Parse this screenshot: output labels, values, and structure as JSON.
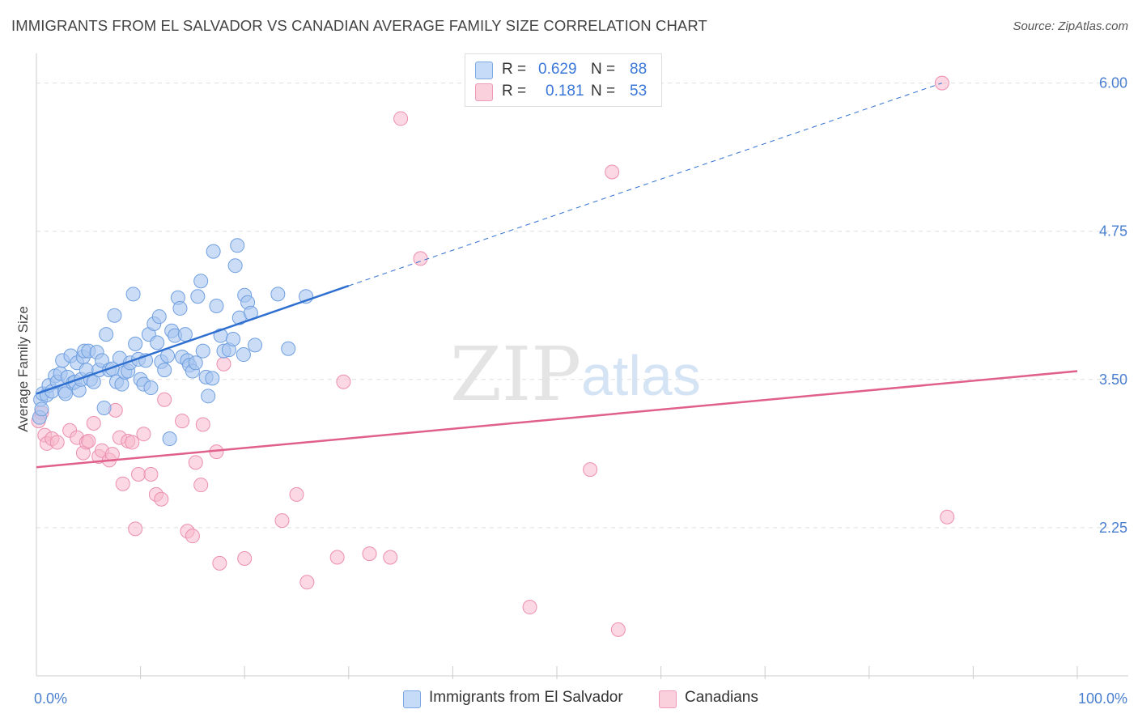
{
  "title": "IMMIGRANTS FROM EL SALVADOR VS CANADIAN AVERAGE FAMILY SIZE CORRELATION CHART",
  "source": "Source: ZipAtlas.com",
  "watermark": {
    "zip": "ZIP",
    "atlas": "atlas"
  },
  "legend": {
    "rows": [
      {
        "r_label": "R =",
        "r_value": "0.629",
        "n_label": "N =",
        "n_value": "88",
        "color": "#a8c6f0"
      },
      {
        "r_label": "R =",
        "r_value": "0.181",
        "n_label": "N =",
        "n_value": "53",
        "color": "#f7b8cc"
      }
    ]
  },
  "bottom_legend": [
    {
      "label": "Immigrants from El Salvador",
      "color": "#a8c6f0"
    },
    {
      "label": "Canadians",
      "color": "#f7b8cc"
    }
  ],
  "colors": {
    "blue_fill": "#a8c6f0",
    "blue_stroke": "#6f9fe0",
    "blue_line": "#2f6fd0",
    "pink_fill": "#f7b8cc",
    "pink_stroke": "#ec8fb0",
    "pink_line": "#e0608a",
    "tick_text": "#4a7fd0",
    "grid": "#dddddd"
  },
  "chart_data": {
    "type": "scatter",
    "title": "IMMIGRANTS FROM EL SALVADOR VS CANADIAN AVERAGE FAMILY SIZE CORRELATION CHART",
    "xlabel": "",
    "ylabel": "Average Family Size",
    "xlim": [
      0,
      100
    ],
    "ylim": [
      1.0,
      6.25
    ],
    "y_ticks": [
      2.25,
      3.5,
      4.75,
      6.0
    ],
    "y_tick_labels": [
      "2.25",
      "3.50",
      "4.75",
      "6.00"
    ],
    "x_tick_labels": [
      "0.0%",
      "100.0%"
    ],
    "grid": "horizontal dashed",
    "series": [
      {
        "name": "Immigrants from El Salvador",
        "trend": {
          "x": [
            0,
            30
          ],
          "y": [
            3.38,
            4.29
          ],
          "extended_to": [
            87,
            6.0
          ]
        },
        "points": [
          [
            0.3,
            3.18
          ],
          [
            0.4,
            3.33
          ],
          [
            0.5,
            3.25
          ],
          [
            0.6,
            3.38
          ],
          [
            1.0,
            3.37
          ],
          [
            1.2,
            3.45
          ],
          [
            1.5,
            3.4
          ],
          [
            1.8,
            3.53
          ],
          [
            2.0,
            3.48
          ],
          [
            2.3,
            3.55
          ],
          [
            2.5,
            3.66
          ],
          [
            2.7,
            3.4
          ],
          [
            2.8,
            3.38
          ],
          [
            3.0,
            3.52
          ],
          [
            3.3,
            3.7
          ],
          [
            3.5,
            3.47
          ],
          [
            3.7,
            3.48
          ],
          [
            3.9,
            3.64
          ],
          [
            4.1,
            3.41
          ],
          [
            4.3,
            3.5
          ],
          [
            4.5,
            3.69
          ],
          [
            4.6,
            3.74
          ],
          [
            4.8,
            3.58
          ],
          [
            5.0,
            3.74
          ],
          [
            5.2,
            3.5
          ],
          [
            5.5,
            3.48
          ],
          [
            5.8,
            3.73
          ],
          [
            6.0,
            3.58
          ],
          [
            6.3,
            3.66
          ],
          [
            6.5,
            3.26
          ],
          [
            6.7,
            3.88
          ],
          [
            7.0,
            3.58
          ],
          [
            7.3,
            3.59
          ],
          [
            7.5,
            4.04
          ],
          [
            7.7,
            3.48
          ],
          [
            8.0,
            3.68
          ],
          [
            8.2,
            3.46
          ],
          [
            8.5,
            3.56
          ],
          [
            8.8,
            3.57
          ],
          [
            9.0,
            3.64
          ],
          [
            9.3,
            4.22
          ],
          [
            9.5,
            3.8
          ],
          [
            9.8,
            3.67
          ],
          [
            10.0,
            3.5
          ],
          [
            10.3,
            3.46
          ],
          [
            10.5,
            3.66
          ],
          [
            10.8,
            3.88
          ],
          [
            11.0,
            3.43
          ],
          [
            11.3,
            3.97
          ],
          [
            11.6,
            3.81
          ],
          [
            11.8,
            4.03
          ],
          [
            12.0,
            3.65
          ],
          [
            12.3,
            3.58
          ],
          [
            12.6,
            3.7
          ],
          [
            12.8,
            3.0
          ],
          [
            13.0,
            3.91
          ],
          [
            13.3,
            3.87
          ],
          [
            13.6,
            4.19
          ],
          [
            13.8,
            4.1
          ],
          [
            14.0,
            3.69
          ],
          [
            14.3,
            3.88
          ],
          [
            14.5,
            3.66
          ],
          [
            14.7,
            3.62
          ],
          [
            15.0,
            3.57
          ],
          [
            15.3,
            3.64
          ],
          [
            15.5,
            4.2
          ],
          [
            15.8,
            4.33
          ],
          [
            16.0,
            3.74
          ],
          [
            16.3,
            3.52
          ],
          [
            16.5,
            3.36
          ],
          [
            16.9,
            3.51
          ],
          [
            17.0,
            4.58
          ],
          [
            17.3,
            4.12
          ],
          [
            17.7,
            3.87
          ],
          [
            18.0,
            3.74
          ],
          [
            18.5,
            3.75
          ],
          [
            18.9,
            3.84
          ],
          [
            19.1,
            4.46
          ],
          [
            19.3,
            4.63
          ],
          [
            19.5,
            4.02
          ],
          [
            19.9,
            3.71
          ],
          [
            20.0,
            4.21
          ],
          [
            20.3,
            4.15
          ],
          [
            20.6,
            4.06
          ],
          [
            21.0,
            3.79
          ],
          [
            23.2,
            4.22
          ],
          [
            24.2,
            3.76
          ],
          [
            25.9,
            4.2
          ]
        ]
      },
      {
        "name": "Canadians",
        "trend": {
          "x": [
            0,
            100
          ],
          "y": [
            2.76,
            3.57
          ]
        },
        "points": [
          [
            0.5,
            3.22
          ],
          [
            0.8,
            3.03
          ],
          [
            1.0,
            2.96
          ],
          [
            1.5,
            3.0
          ],
          [
            2.0,
            2.97
          ],
          [
            3.2,
            3.07
          ],
          [
            3.9,
            3.01
          ],
          [
            4.5,
            2.88
          ],
          [
            4.8,
            2.97
          ],
          [
            5.0,
            2.98
          ],
          [
            5.5,
            3.13
          ],
          [
            6.0,
            2.85
          ],
          [
            6.3,
            2.9
          ],
          [
            7.0,
            2.82
          ],
          [
            7.3,
            2.87
          ],
          [
            7.6,
            3.24
          ],
          [
            8.0,
            3.01
          ],
          [
            8.3,
            2.62
          ],
          [
            8.8,
            2.98
          ],
          [
            9.2,
            2.97
          ],
          [
            9.5,
            2.24
          ],
          [
            9.8,
            2.7
          ],
          [
            10.3,
            3.04
          ],
          [
            11.0,
            2.7
          ],
          [
            11.5,
            2.53
          ],
          [
            12.0,
            2.49
          ],
          [
            12.3,
            3.33
          ],
          [
            14.0,
            3.15
          ],
          [
            14.5,
            2.22
          ],
          [
            15.0,
            2.18
          ],
          [
            15.3,
            2.8
          ],
          [
            15.8,
            2.61
          ],
          [
            16.0,
            3.12
          ],
          [
            17.3,
            2.89
          ],
          [
            17.6,
            1.95
          ],
          [
            18.0,
            3.63
          ],
          [
            20.0,
            1.99
          ],
          [
            23.6,
            2.31
          ],
          [
            25.0,
            2.53
          ],
          [
            26.0,
            1.79
          ],
          [
            28.9,
            2.0
          ],
          [
            29.5,
            3.48
          ],
          [
            32.0,
            2.03
          ],
          [
            34.0,
            2.0
          ],
          [
            35.0,
            5.7
          ],
          [
            36.9,
            4.52
          ],
          [
            47.4,
            1.58
          ],
          [
            53.2,
            2.74
          ],
          [
            55.3,
            5.25
          ],
          [
            55.9,
            1.39
          ],
          [
            87.0,
            6.0
          ],
          [
            87.5,
            2.34
          ],
          [
            0.2,
            3.15
          ]
        ]
      }
    ]
  }
}
